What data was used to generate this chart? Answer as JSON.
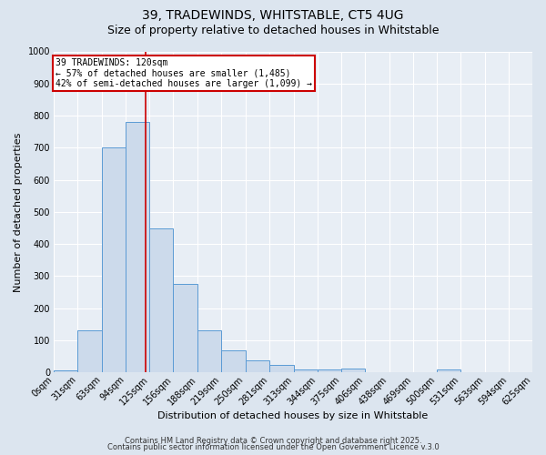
{
  "title1": "39, TRADEWINDS, WHITSTABLE, CT5 4UG",
  "title2": "Size of property relative to detached houses in Whitstable",
  "xlabel": "Distribution of detached houses by size in Whitstable",
  "ylabel": "Number of detached properties",
  "bin_edges": [
    0,
    31,
    63,
    94,
    125,
    156,
    188,
    219,
    250,
    281,
    313,
    344,
    375,
    406,
    438,
    469,
    500,
    531,
    563,
    594,
    625
  ],
  "bar_heights": [
    5,
    130,
    700,
    780,
    450,
    275,
    130,
    70,
    38,
    22,
    10,
    10,
    12,
    0,
    0,
    0,
    8,
    0,
    0,
    0
  ],
  "bar_facecolor": "#ccdaeb",
  "bar_edgecolor": "#5b9bd5",
  "bar_linewidth": 0.7,
  "vline_x": 120,
  "vline_color": "#cc0000",
  "vline_linewidth": 1.2,
  "annotation_text": "39 TRADEWINDS: 120sqm\n← 57% of detached houses are smaller (1,485)\n42% of semi-detached houses are larger (1,099) →",
  "annotation_box_color": "#cc0000",
  "annotation_text_color": "#000000",
  "ylim": [
    0,
    1000
  ],
  "xlim": [
    0,
    625
  ],
  "yticks": [
    0,
    100,
    200,
    300,
    400,
    500,
    600,
    700,
    800,
    900,
    1000
  ],
  "xtick_labels": [
    "0sqm",
    "31sqm",
    "63sqm",
    "94sqm",
    "125sqm",
    "156sqm",
    "188sqm",
    "219sqm",
    "250sqm",
    "281sqm",
    "313sqm",
    "344sqm",
    "375sqm",
    "406sqm",
    "438sqm",
    "469sqm",
    "500sqm",
    "531sqm",
    "563sqm",
    "594sqm",
    "625sqm"
  ],
  "bg_color": "#e8eef5",
  "fig_color": "#dce5ef",
  "grid_color": "#ffffff",
  "footer1": "Contains HM Land Registry data © Crown copyright and database right 2025.",
  "footer2": "Contains public sector information licensed under the Open Government Licence v.3.0",
  "title1_fontsize": 10,
  "title2_fontsize": 9,
  "xlabel_fontsize": 8,
  "ylabel_fontsize": 8,
  "tick_fontsize": 7,
  "annot_fontsize": 7,
  "footer_fontsize": 6
}
